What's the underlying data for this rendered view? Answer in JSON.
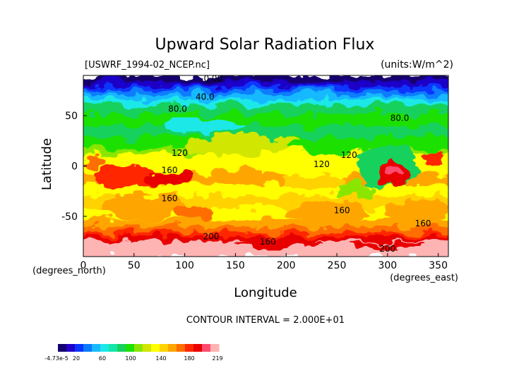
{
  "chart_data": {
    "type": "heatmap",
    "title": "Upward Solar Radiation Flux",
    "file_label": "[USWRF_1994-02_NCEP.nc]",
    "units_label": "(units:W/m^2)",
    "xlabel": "Longitude",
    "ylabel": "Latitude",
    "x_unit_label": "(degrees_east)",
    "y_unit_label": "(degrees_north)",
    "xlim": [
      0,
      360
    ],
    "ylim": [
      -90,
      90
    ],
    "x_ticks": [
      0,
      50,
      100,
      150,
      200,
      250,
      300,
      350
    ],
    "y_ticks": [
      50,
      0,
      -50
    ],
    "contour_interval_label": "CONTOUR INTERVAL = 2.000E+01",
    "contour_labels": [
      {
        "text": "0.00",
        "lon": 128,
        "lat": 84
      },
      {
        "text": "40.0",
        "lon": 120,
        "lat": 66
      },
      {
        "text": "80.0",
        "lon": 93,
        "lat": 54
      },
      {
        "text": "80.0",
        "lon": 312,
        "lat": 45
      },
      {
        "text": "120",
        "lon": 95,
        "lat": 10
      },
      {
        "text": "120",
        "lon": 262,
        "lat": 8
      },
      {
        "text": "120",
        "lon": 235,
        "lat": -1
      },
      {
        "text": "160",
        "lon": 85,
        "lat": -7
      },
      {
        "text": "160",
        "lon": 85,
        "lat": -35
      },
      {
        "text": "160",
        "lon": 255,
        "lat": -47
      },
      {
        "text": "160",
        "lon": 335,
        "lat": -60
      },
      {
        "text": "160",
        "lon": 182,
        "lat": -78
      },
      {
        "text": "200",
        "lon": 126,
        "lat": -73
      },
      {
        "text": "200",
        "lon": 300,
        "lat": -85
      }
    ],
    "colorbar": {
      "labels": [
        "-4.73e-5",
        "20",
        "60",
        "100",
        "140",
        "180",
        "219"
      ],
      "colors": [
        "#14006e",
        "#1f00c8",
        "#0a35ff",
        "#0a7bff",
        "#19b9ff",
        "#1ce8e8",
        "#14e6a8",
        "#16d25d",
        "#1ee100",
        "#8ae600",
        "#d1e600",
        "#ffff00",
        "#ffd200",
        "#ffa500",
        "#ff6e00",
        "#ff2800",
        "#e80000",
        "#ff4b6e",
        "#ffb4b4"
      ]
    }
  }
}
